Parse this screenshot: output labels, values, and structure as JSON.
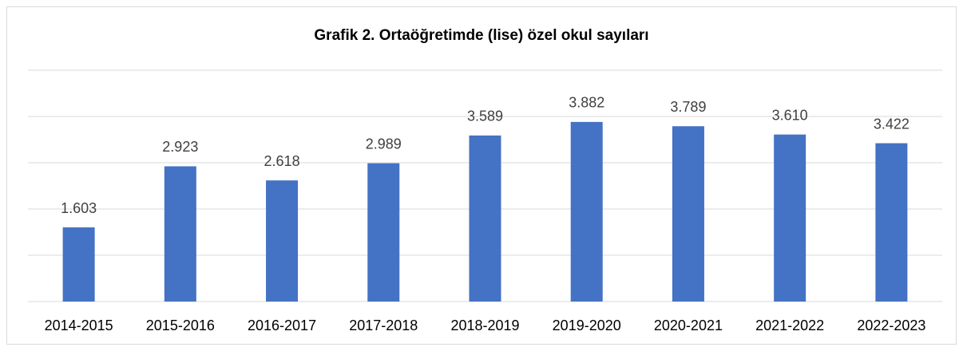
{
  "chart_data": {
    "type": "bar",
    "title": "Grafik 2. Ortaöğretimde (lise) özel okul sayıları",
    "categories": [
      "2014-2015",
      "2015-2016",
      "2016-2017",
      "2017-2018",
      "2018-2019",
      "2019-2020",
      "2020-2021",
      "2021-2022",
      "2022-2023"
    ],
    "values": [
      1603,
      2923,
      2618,
      2989,
      3589,
      3882,
      3789,
      3610,
      3422
    ],
    "value_labels": [
      "1.603",
      "2.923",
      "2.618",
      "2.989",
      "3.589",
      "3.882",
      "3.789",
      "3.610",
      "3.422"
    ],
    "color": "#4472c4",
    "ylim": [
      0,
      5000
    ],
    "yticks": [
      0,
      1000,
      2000,
      3000,
      4000,
      5000
    ],
    "grid": true
  }
}
